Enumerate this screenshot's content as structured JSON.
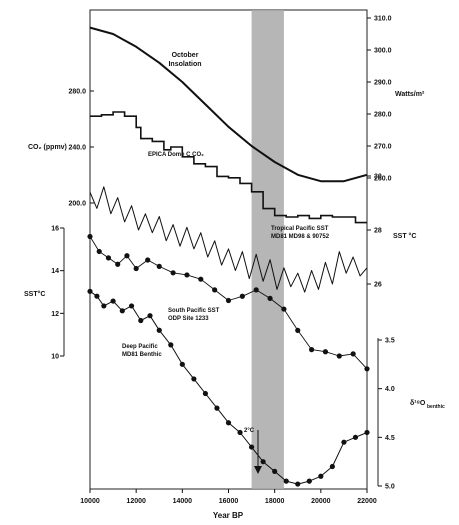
{
  "colors": {
    "ink": "#111111",
    "shade": "#a9a9a9",
    "frame": "#222222"
  },
  "text": {
    "xlabel": "Year BP",
    "insol_label_1": "October",
    "insol_label_2": "Insolation",
    "co2_axis_label": "CO₂ (ppmv)",
    "watts_label": "Watts/m²",
    "epica_label": "EPICA Dome C CO₂",
    "tropical_label_1": "Tropical Pacific SST",
    "tropical_label_2": "MD81 MD98 & 90752",
    "sst_right_label": "SST °C",
    "south_label_1": "South Pacific SST",
    "south_label_2": "ODP Site 1233",
    "deep_label_1": "Deep Pacific",
    "deep_label_2": "MD81 Benthic",
    "sst_left_label": "SST°C",
    "d18o_label": "δ¹⁸O",
    "d18o_sub": "benthic",
    "arrow_label": "2°C"
  },
  "chart_data": {
    "type": "line",
    "xlabel": "Year BP",
    "xlim": [
      10000,
      22000
    ],
    "x_ticks": [
      "10000",
      "12000",
      "14000",
      "16000",
      "18000",
      "20000",
      "22000"
    ],
    "shaded_band": [
      17000,
      18400
    ],
    "axes": {
      "co2_left": {
        "label": "CO₂ (ppmv)",
        "ticks": [
          "280.0",
          "240.0",
          "200.0"
        ],
        "range": [
          200,
          280
        ]
      },
      "insolation_right": {
        "label": "Watts/m²",
        "ticks": [
          "310.0",
          "300.0",
          "290.0",
          "280.0",
          "270.0",
          "260.0"
        ],
        "range": [
          260,
          310
        ]
      },
      "sst_right": {
        "label": "SST °C",
        "ticks": [
          "30",
          "28",
          "26"
        ],
        "range": [
          26,
          30
        ]
      },
      "sst_left": {
        "label": "SST°C",
        "ticks": [
          "16",
          "14",
          "12",
          "10"
        ],
        "range": [
          10,
          16
        ]
      },
      "d18o_right": {
        "label": "δ¹⁸O benthic",
        "ticks": [
          "3.5",
          "4.0",
          "4.5",
          "5.0"
        ],
        "range": [
          3.5,
          5.0
        ],
        "inverted": true
      }
    },
    "series": [
      {
        "name": "October Insolation",
        "axis": "insolation_right",
        "x": [
          10000,
          11000,
          12000,
          13000,
          14000,
          15000,
          16000,
          17000,
          18000,
          19000,
          20000,
          21000,
          22000
        ],
        "values": [
          307,
          305,
          301,
          296,
          290,
          283,
          276,
          270,
          265,
          261,
          259,
          259,
          261
        ]
      },
      {
        "name": "EPICA Dome C CO₂",
        "axis": "co2_left",
        "x": [
          10000,
          10500,
          11000,
          11500,
          12000,
          12200,
          12700,
          13200,
          13500,
          14000,
          14500,
          15000,
          15500,
          16000,
          16500,
          17000,
          17500,
          18000,
          18500,
          19000,
          19500,
          20000,
          20500,
          21000,
          21500,
          22000
        ],
        "values": [
          262,
          263,
          265,
          262,
          254,
          246,
          244,
          238,
          240,
          233,
          228,
          226,
          219,
          218,
          214,
          208,
          196,
          191,
          190,
          191,
          189,
          191,
          190,
          190,
          186,
          186
        ]
      },
      {
        "name": "Tropical Pacific SST",
        "axis": "sst_right",
        "x": [
          10000,
          10300,
          10600,
          10900,
          11200,
          11500,
          11800,
          12100,
          12400,
          12700,
          13000,
          13300,
          13600,
          13900,
          14200,
          14500,
          14800,
          15100,
          15400,
          15700,
          16000,
          16300,
          16600,
          16900,
          17200,
          17500,
          17800,
          18100,
          18400,
          18700,
          19000,
          19300,
          19600,
          19900,
          20200,
          20500,
          20800,
          21100,
          21400,
          21700,
          22000
        ],
        "values": [
          29.4,
          28.8,
          29.6,
          28.6,
          29.2,
          28.3,
          28.9,
          28.0,
          28.6,
          27.9,
          28.5,
          27.6,
          28.2,
          27.4,
          28.1,
          27.3,
          27.9,
          27.0,
          27.6,
          26.7,
          27.3,
          26.5,
          27.2,
          26.2,
          27.1,
          26.1,
          26.9,
          25.8,
          26.6,
          25.9,
          26.4,
          25.7,
          26.5,
          25.8,
          26.8,
          26.0,
          27.2,
          26.4,
          27.0,
          26.3,
          26.6
        ]
      },
      {
        "name": "South Pacific SST",
        "axis": "sst_left",
        "x": [
          10000,
          10400,
          10800,
          11200,
          11600,
          12000,
          12500,
          13000,
          13600,
          14200,
          14800,
          15400,
          16000,
          16600,
          17200,
          17800,
          18400,
          19000,
          19600,
          20200,
          20800,
          21400,
          22000
        ],
        "values": [
          15.6,
          14.9,
          14.6,
          14.3,
          14.7,
          14.1,
          14.5,
          14.2,
          13.9,
          13.8,
          13.6,
          13.1,
          12.6,
          12.8,
          13.1,
          12.7,
          12.2,
          11.2,
          10.3,
          10.2,
          10.0,
          10.1,
          9.4
        ]
      },
      {
        "name": "Deep Pacific Benthic",
        "axis": "d18o_right",
        "x": [
          10000,
          10300,
          10600,
          11000,
          11400,
          11800,
          12200,
          12600,
          13000,
          13500,
          14000,
          14500,
          15000,
          15500,
          16000,
          16500,
          17000,
          17500,
          18000,
          18500,
          19000,
          19500,
          20000,
          20500,
          21000,
          21500,
          22000
        ],
        "values": [
          3.0,
          3.05,
          3.15,
          3.1,
          3.2,
          3.15,
          3.3,
          3.25,
          3.4,
          3.55,
          3.75,
          3.9,
          4.05,
          4.2,
          4.35,
          4.45,
          4.6,
          4.75,
          4.85,
          4.95,
          4.98,
          4.95,
          4.9,
          4.8,
          4.55,
          4.5,
          4.45
        ]
      }
    ]
  }
}
